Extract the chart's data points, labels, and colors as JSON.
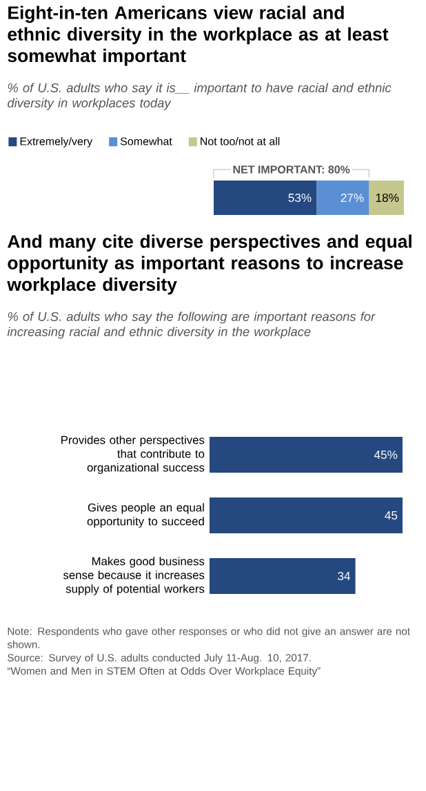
{
  "chart_data": [
    {
      "type": "bar",
      "orientation": "horizontal",
      "stacked": true,
      "title": "Eight-in-ten Americans view racial and ethnic diversity in the workplace as at least somewhat important",
      "subtitle": "% of U.S. adults who say it is__ important to have racial and ethnic diversity in workplaces today",
      "categories": [
        null
      ],
      "legend": "top",
      "annotations": [
        "NET IMPORTANT: 80%"
      ],
      "series": [
        {
          "name": "Extremely/very",
          "color": "#24487f",
          "values": [
            53
          ],
          "value_labels": [
            "53%"
          ]
        },
        {
          "name": "Somewhat",
          "color": "#5b8fd4",
          "values": [
            27
          ],
          "value_labels": [
            "27%"
          ]
        },
        {
          "name": "Not too/not at all",
          "color": "#c5c88c",
          "values": [
            18
          ],
          "value_labels": [
            "18%"
          ]
        }
      ]
    },
    {
      "type": "bar",
      "orientation": "horizontal",
      "title": "And many cite diverse perspectives and equal opportunity as important reasons to increase workplace diversity",
      "subtitle": "% of U.S. adults who say the following are important reasons for increasing racial and ethnic diversity in the workplace",
      "categories": [
        "Provides other perspectives that contribute to organizational success",
        "Gives people an equal opportunity to succeed",
        "Makes good business sense because it increases supply of potential workers"
      ],
      "values": [
        45,
        45,
        34
      ],
      "value_labels": [
        "45%",
        "45",
        "34"
      ],
      "color": "#24487f",
      "annotations": [
        "Note: Respondents who gave other responses or who did not give an answer are not shown.",
        "Source: Survey of U.S. adults conducted July 11-Aug. 10, 2017.",
        "“Women and Men in STEM Often at Odds Over Workplace Equity”"
      ]
    }
  ]
}
